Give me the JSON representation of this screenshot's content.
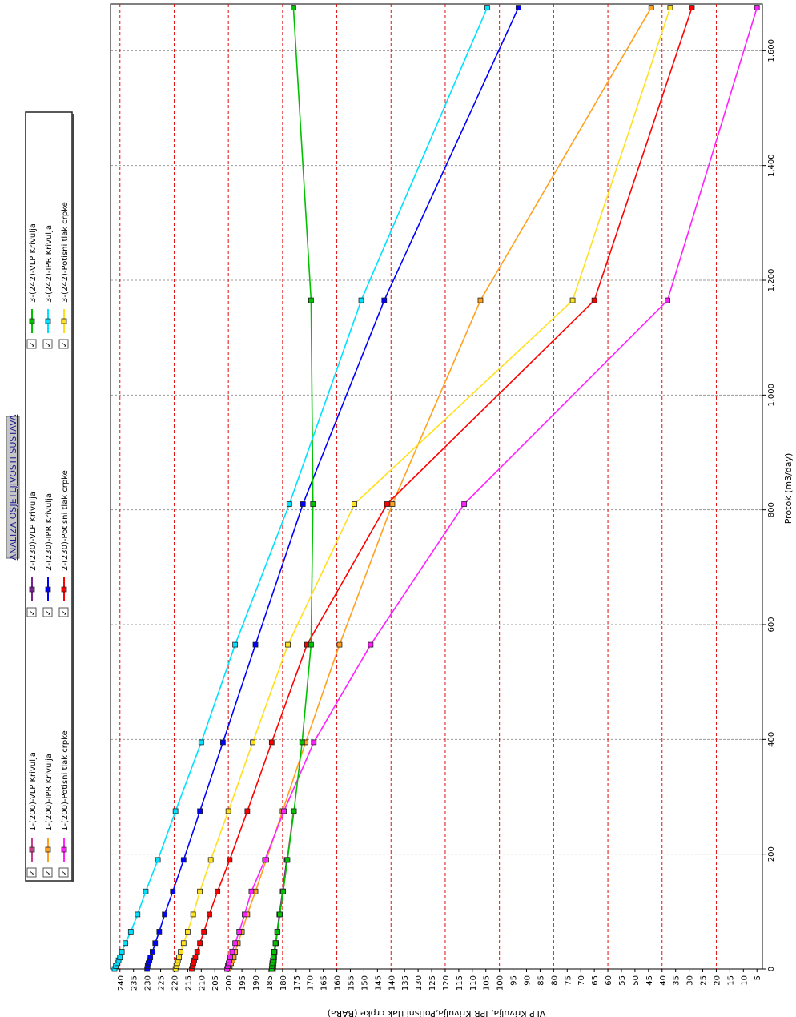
{
  "chart_data": {
    "type": "line",
    "title": "ANALIZA OSJETLJIVOSTI SUSTAVA",
    "xlabel": "Protok  (m3/day)",
    "ylabel": "VLP Krivulja, IPR Krivulja,Potisni tlak crpke (BARa)",
    "xlim": [
      0,
      1680
    ],
    "ylim": [
      3,
      242
    ],
    "orientation": "rotated-90-clockwise",
    "x_ticks": [
      0,
      200,
      400,
      600,
      800,
      1000,
      1200,
      1400,
      1600
    ],
    "x_tick_labels": [
      "0",
      "200",
      "400",
      "600",
      "800",
      "1.000",
      "1.200",
      "1.400",
      "1.600"
    ],
    "y_ticks": [
      240,
      235,
      230,
      225,
      220,
      215,
      210,
      205,
      200,
      195,
      190,
      185,
      180,
      175,
      170,
      165,
      160,
      155,
      150,
      145,
      140,
      135,
      130,
      125,
      120,
      115,
      110,
      105,
      100,
      95,
      90,
      85,
      80,
      75,
      70,
      65,
      60,
      55,
      50,
      45,
      40,
      35,
      30,
      25,
      20,
      15,
      10,
      5
    ],
    "y_tick_labels": [
      "240",
      "235",
      "230",
      "225",
      "220",
      "215",
      "210",
      "205",
      "200",
      "195",
      "190",
      "185",
      "180",
      "175",
      "170",
      "165",
      "160",
      "155",
      "150",
      "145",
      "140",
      "135",
      "130",
      "125",
      "120",
      "115",
      "110",
      "105",
      "100",
      "95",
      "90",
      "85",
      "80",
      "75",
      "70",
      "65",
      "60",
      "55",
      "50",
      "45",
      "40",
      "35",
      "30",
      "25",
      "20",
      "15",
      "10",
      "5"
    ],
    "x_grid": true,
    "y_grid_red_values": [
      240,
      220,
      200,
      180,
      160,
      140,
      120,
      100,
      80,
      60,
      40,
      20
    ],
    "legend_placement": "top",
    "series": [
      {
        "name": "1-(200)-VLP Krivulja",
        "color": "#c8408c",
        "x": [
          0,
          5,
          10,
          15,
          20,
          30,
          45,
          65,
          95,
          135,
          190,
          275
        ],
        "y": [
          183.5,
          183.4,
          183.3,
          183.2,
          183.1,
          182.9,
          182.4,
          181.9,
          181,
          179.8,
          178.3,
          176
        ]
      },
      {
        "name": "1-(200)-IPR Krivulja",
        "color": "#ffa020",
        "x": [
          0,
          5,
          10,
          15,
          20,
          30,
          45,
          65,
          95,
          135,
          190,
          275,
          395,
          565,
          810,
          1165,
          1675
        ],
        "y": [
          200,
          199.5,
          199,
          198.5,
          198,
          197.5,
          196.5,
          195,
          193,
          190,
          186,
          180,
          171.5,
          159,
          139.5,
          107,
          44
        ]
      },
      {
        "name": "1-(200)-Potisni tlak crpke",
        "color": "#ff20ff",
        "x": [
          0,
          5,
          10,
          15,
          20,
          30,
          45,
          65,
          95,
          135,
          190,
          275,
          395,
          565,
          810,
          1165,
          1675
        ],
        "y": [
          200.5,
          200.2,
          199.9,
          199.6,
          199.3,
          198.6,
          197.5,
          196,
          194,
          191.5,
          186.5,
          179.5,
          168.5,
          147.5,
          113,
          38,
          5
        ]
      },
      {
        "name": "2-(230)-VLP Krivulja",
        "color": "#7a2090",
        "x": [
          0,
          5,
          10,
          15,
          20,
          30,
          45,
          65,
          95,
          135,
          190
        ],
        "y": [
          183.8,
          183.7,
          183.6,
          183.5,
          183.4,
          183.1,
          182.6,
          182,
          181.2,
          180,
          178.5
        ]
      },
      {
        "name": "2-(230)-IPR Krivulja",
        "color": "#0000ff",
        "x": [
          0,
          5,
          10,
          15,
          20,
          30,
          45,
          65,
          95,
          135,
          190,
          275,
          395,
          565,
          810,
          1165,
          1675
        ],
        "y": [
          230,
          229.8,
          229.5,
          229.1,
          228.8,
          228,
          227,
          225.5,
          223.5,
          220.5,
          216.5,
          210.5,
          202,
          190,
          172.5,
          142.5,
          93
        ]
      },
      {
        "name": "2-(230)-Potisni tlak crpke",
        "color": "#ff0000",
        "x": [
          0,
          5,
          10,
          15,
          20,
          30,
          45,
          65,
          95,
          135,
          190,
          275,
          395,
          565,
          810,
          1165,
          1675
        ],
        "y": [
          213.5,
          213.2,
          212.9,
          212.6,
          212.2,
          211.5,
          210.5,
          209,
          207,
          204,
          199.5,
          193,
          184,
          171,
          141.5,
          65,
          29
        ]
      },
      {
        "name": "3-(242)-VLP Krivulja",
        "color": "#00c000",
        "x": [
          0,
          5,
          10,
          15,
          20,
          30,
          45,
          65,
          95,
          135,
          190,
          275,
          395,
          565,
          810,
          1165,
          1675
        ],
        "y": [
          184,
          183.9,
          183.8,
          183.6,
          183.4,
          183.1,
          182.6,
          181.9,
          181,
          179.8,
          178.2,
          175.8,
          172.8,
          169.5,
          168.8,
          169.5,
          176
        ]
      },
      {
        "name": "3-(242)-IPR Krivulja",
        "color": "#00e0ff",
        "x": [
          0,
          5,
          10,
          15,
          20,
          30,
          45,
          65,
          95,
          135,
          190,
          275,
          395,
          565,
          810,
          1165,
          1675
        ],
        "y": [
          242,
          241.5,
          241,
          240.5,
          240,
          239.3,
          238,
          236,
          233.5,
          230.5,
          226,
          219.5,
          210,
          197.5,
          177.5,
          151,
          104.5
        ]
      },
      {
        "name": "3-(242)-Potisni tlak crpke",
        "color": "#ffe020",
        "x": [
          0,
          5,
          10,
          15,
          20,
          30,
          45,
          65,
          95,
          135,
          190,
          275,
          395,
          565,
          810,
          1165,
          1675
        ],
        "y": [
          219.5,
          219.2,
          218.9,
          218.6,
          218.2,
          217.6,
          216.5,
          215,
          213,
          210.5,
          206.5,
          200,
          191,
          178,
          153.5,
          73,
          37
        ]
      }
    ]
  }
}
